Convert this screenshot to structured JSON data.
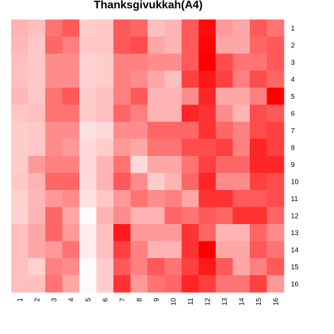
{
  "chart_data": {
    "type": "heatmap",
    "title": "Thanksgivukkah(A4)",
    "row_labels": [
      "1",
      "2",
      "3",
      "4",
      "5",
      "6",
      "7",
      "8",
      "9",
      "10",
      "11",
      "12",
      "13",
      "14",
      "15",
      "16"
    ],
    "col_labels": [
      "1",
      "2",
      "3",
      "4",
      "5",
      "6",
      "7",
      "8",
      "9",
      "10",
      "11",
      "12",
      "13",
      "14",
      "15",
      "16"
    ],
    "color_low": "#ffffff",
    "color_high": "#ff0000",
    "value_range": [
      0,
      1
    ],
    "values": [
      [
        0.3,
        0.25,
        0.55,
        0.65,
        0.2,
        0.22,
        0.65,
        0.6,
        0.25,
        0.3,
        0.65,
        0.95,
        0.4,
        0.35,
        0.65,
        0.55
      ],
      [
        0.28,
        0.22,
        0.6,
        0.5,
        0.22,
        0.22,
        0.65,
        0.7,
        0.35,
        0.3,
        0.65,
        0.98,
        0.35,
        0.35,
        0.6,
        0.65
      ],
      [
        0.25,
        0.22,
        0.45,
        0.45,
        0.18,
        0.2,
        0.5,
        0.5,
        0.45,
        0.45,
        0.65,
        1.0,
        0.7,
        0.55,
        0.55,
        0.65
      ],
      [
        0.25,
        0.22,
        0.45,
        0.45,
        0.18,
        0.2,
        0.5,
        0.45,
        0.35,
        0.25,
        0.75,
        0.9,
        0.75,
        0.5,
        0.7,
        0.6
      ],
      [
        0.28,
        0.22,
        0.55,
        0.65,
        0.2,
        0.25,
        0.5,
        0.65,
        0.3,
        0.3,
        0.45,
        0.85,
        0.35,
        0.35,
        0.5,
        1.0
      ],
      [
        0.22,
        0.25,
        0.55,
        0.55,
        0.2,
        0.25,
        0.6,
        0.5,
        0.3,
        0.3,
        0.85,
        0.8,
        0.45,
        0.3,
        0.7,
        0.65
      ],
      [
        0.2,
        0.22,
        0.45,
        0.45,
        0.12,
        0.15,
        0.45,
        0.45,
        0.6,
        0.6,
        0.6,
        0.8,
        0.6,
        0.5,
        0.7,
        0.75
      ],
      [
        0.2,
        0.22,
        0.45,
        0.4,
        0.15,
        0.2,
        0.4,
        0.35,
        0.55,
        0.55,
        0.7,
        0.7,
        0.75,
        0.5,
        0.85,
        0.75
      ],
      [
        0.2,
        0.4,
        0.5,
        0.5,
        0.15,
        0.3,
        0.55,
        0.15,
        0.35,
        0.35,
        0.55,
        0.75,
        0.6,
        0.6,
        0.85,
        0.85
      ],
      [
        0.22,
        0.3,
        0.6,
        0.6,
        0.15,
        0.3,
        0.65,
        0.45,
        0.2,
        0.3,
        0.6,
        0.85,
        0.45,
        0.45,
        0.75,
        0.7
      ],
      [
        0.18,
        0.28,
        0.4,
        0.45,
        0.12,
        0.22,
        0.4,
        0.55,
        0.45,
        0.5,
        0.35,
        0.8,
        0.8,
        0.65,
        0.65,
        0.7
      ],
      [
        0.18,
        0.3,
        0.6,
        0.35,
        0.02,
        0.3,
        0.45,
        0.3,
        0.3,
        0.6,
        0.55,
        0.65,
        0.6,
        0.8,
        0.8,
        0.6
      ],
      [
        0.25,
        0.35,
        0.6,
        0.4,
        0.08,
        0.25,
        0.9,
        0.4,
        0.4,
        0.4,
        0.8,
        0.6,
        0.3,
        0.3,
        0.6,
        0.45
      ],
      [
        0.25,
        0.35,
        0.4,
        0.55,
        0.08,
        0.25,
        0.75,
        0.5,
        0.3,
        0.3,
        0.8,
        1.0,
        0.35,
        0.35,
        0.65,
        0.55
      ],
      [
        0.25,
        0.18,
        0.5,
        0.45,
        0.02,
        0.2,
        0.65,
        0.5,
        0.65,
        0.55,
        0.75,
        0.9,
        0.65,
        0.35,
        0.5,
        0.65
      ],
      [
        0.25,
        0.25,
        0.55,
        0.35,
        0.02,
        0.2,
        0.8,
        0.4,
        0.55,
        0.6,
        0.85,
        0.75,
        0.55,
        0.55,
        0.75,
        0.4
      ]
    ]
  }
}
